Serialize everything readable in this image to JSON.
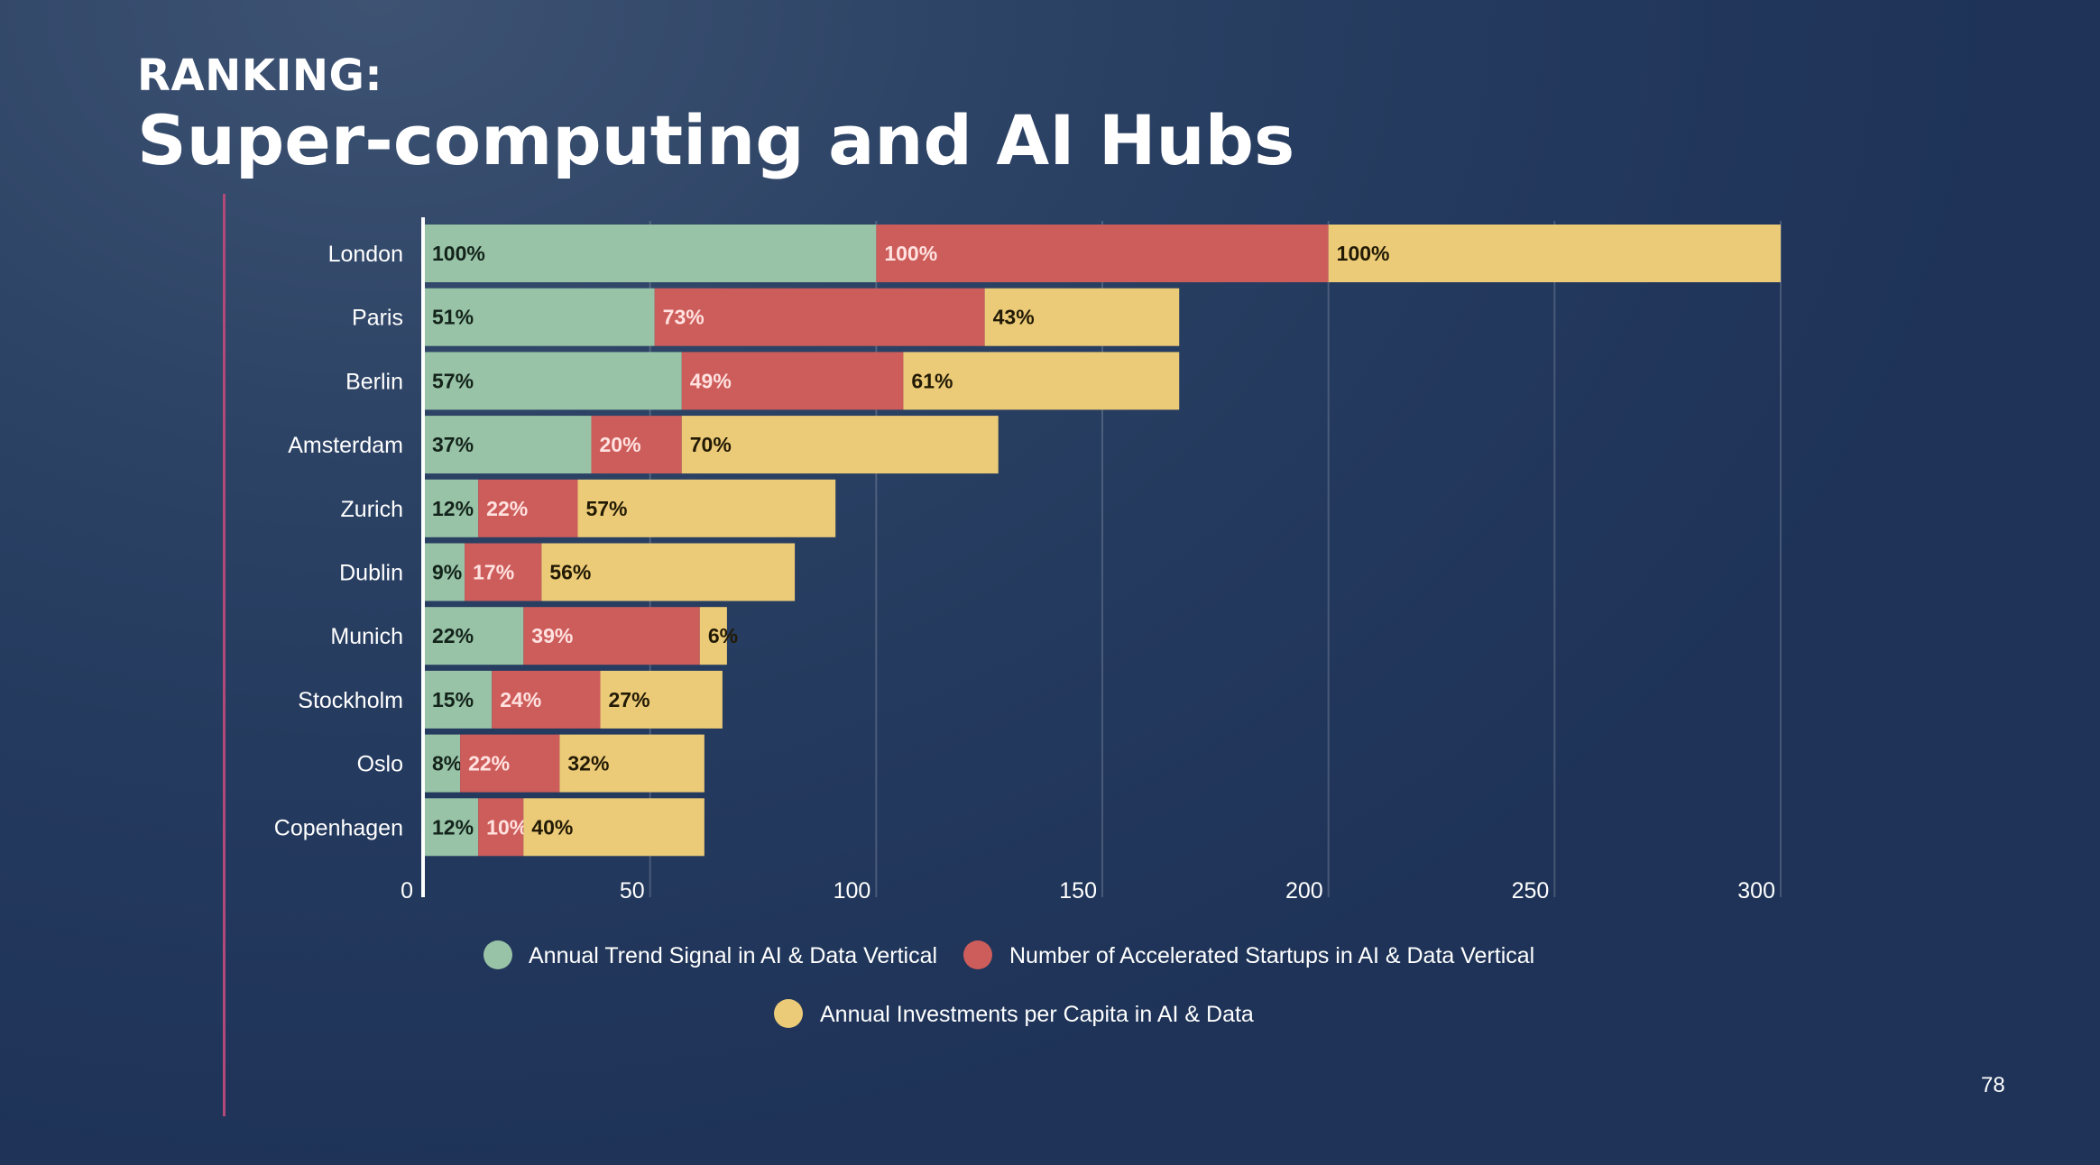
{
  "header": {
    "kicker": "RANKING:",
    "title": "Super-computing and AI Hubs"
  },
  "page_number": "78",
  "colors": {
    "trend": "#98c3a7",
    "startups": "#cd5d5b",
    "investments": "#eccb78",
    "accent_line": "#b14a7a"
  },
  "chart_data": {
    "type": "bar",
    "orientation": "horizontal",
    "stacked": true,
    "categories": [
      "London",
      "Paris",
      "Berlin",
      "Amsterdam",
      "Zurich",
      "Dublin",
      "Munich",
      "Stockholm",
      "Oslo",
      "Copenhagen"
    ],
    "series": [
      {
        "name": "Annual Trend Signal in AI & Data Vertical",
        "color": "#98c3a7",
        "values": [
          100,
          51,
          57,
          37,
          12,
          9,
          22,
          15,
          8,
          12
        ],
        "labels": [
          "100%",
          "51%",
          "57%",
          "37%",
          "12%",
          "9%",
          "22%",
          "15%",
          "8%",
          "12%"
        ]
      },
      {
        "name": "Number of Accelerated Startups in AI & Data Vertical",
        "color": "#cd5d5b",
        "values": [
          100,
          73,
          49,
          20,
          22,
          17,
          39,
          24,
          22,
          10
        ],
        "labels": [
          "100%",
          "73%",
          "49%",
          "20%",
          "22%",
          "17%",
          "39%",
          "24%",
          "22%",
          "10%"
        ]
      },
      {
        "name": "Annual Investments per Capita in AI & Data",
        "color": "#eccb78",
        "values": [
          100,
          43,
          61,
          70,
          57,
          56,
          6,
          27,
          32,
          40
        ],
        "labels": [
          "100%",
          "43%",
          "61%",
          "70%",
          "57%",
          "56%",
          "6%",
          "27%",
          "32%",
          "40%"
        ]
      }
    ],
    "xlim": [
      0,
      300
    ],
    "xticks": [
      0,
      50,
      100,
      150,
      200,
      250,
      300
    ],
    "grid": true,
    "legend_position": "bottom"
  }
}
